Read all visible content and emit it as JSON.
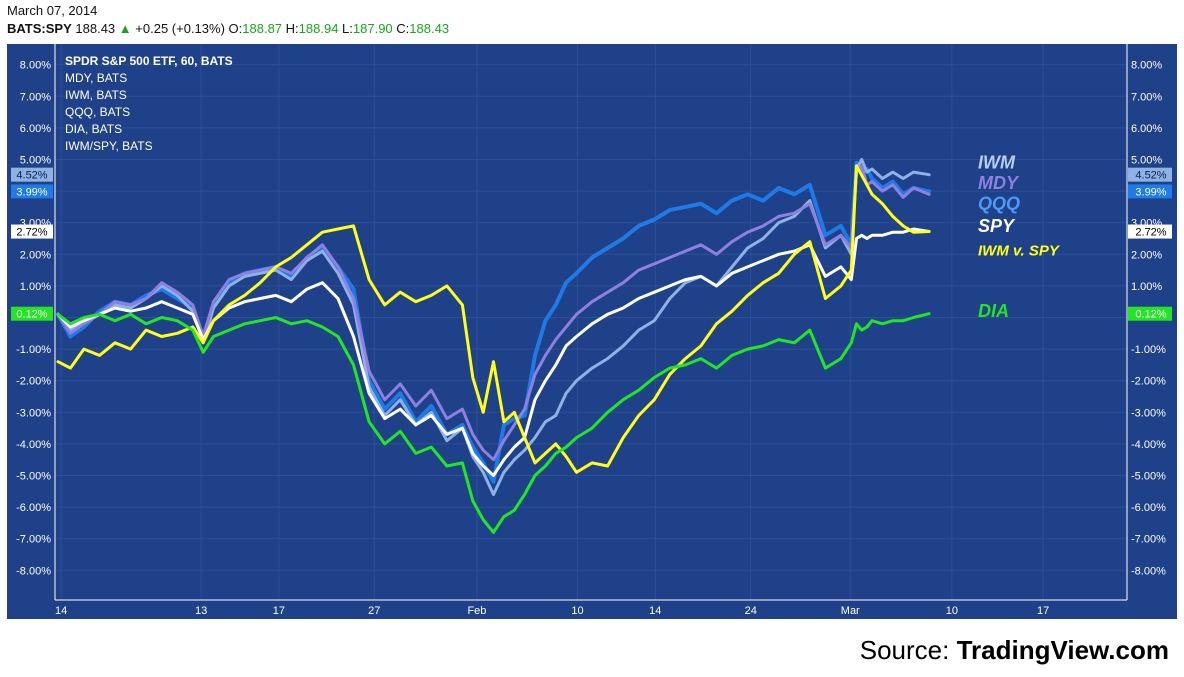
{
  "header": {
    "date": "March 07, 2014",
    "symbol": "BATS:SPY",
    "last": "188.43",
    "change": "+0.25 (+0.13%)",
    "open_label": "O:",
    "open": "188.87",
    "high_label": "H:",
    "high": "188.94",
    "low_label": "L:",
    "low": "187.90",
    "close_label": "C:",
    "close": "188.43",
    "up_color": "#1aa51a"
  },
  "legend": [
    "SPDR S&P 500 ETF, 60, BATS",
    "MDY, BATS",
    "IWM, BATS",
    "QQQ, BATS",
    "DIA, BATS",
    "IWM/SPY, BATS"
  ],
  "source": {
    "prefix": "Source:",
    "name": "TradingView.com"
  },
  "colors": {
    "background": "#1f4189",
    "grid": "#2d5094",
    "axis_text": "#ffffff"
  },
  "chart_data": {
    "type": "line",
    "y_unit": "%",
    "ylim": [
      -8.6,
      8.6
    ],
    "yticks": [
      8,
      7,
      6,
      5,
      4,
      3,
      2,
      1,
      0,
      -1,
      -2,
      -3,
      -4,
      -5,
      -6,
      -7,
      -8
    ],
    "ytick_labels": [
      "8.00%",
      "7.00%",
      "6.00%",
      "5.00%",
      "4.00%",
      "3.00%",
      "2.00%",
      "1.00%",
      "",
      "-1.00%",
      "-2.00%",
      "-3.00%",
      "-4.00%",
      "-5.00%",
      "-6.00%",
      "-7.00%",
      "-8.00%"
    ],
    "xlim": [
      0,
      1000
    ],
    "xticks": [
      {
        "label": "14",
        "x": 3
      },
      {
        "label": "13",
        "x": 138
      },
      {
        "label": "17",
        "x": 213
      },
      {
        "label": "27",
        "x": 305
      },
      {
        "label": "Feb",
        "x": 404
      },
      {
        "label": "10",
        "x": 501
      },
      {
        "label": "14",
        "x": 576
      },
      {
        "label": "24",
        "x": 668
      },
      {
        "label": "Mar",
        "x": 764
      },
      {
        "label": "10",
        "x": 862
      },
      {
        "label": "17",
        "x": 950
      }
    ],
    "price_tags": [
      {
        "text": "4.52%",
        "value": 4.52,
        "color": "#8fb2e6",
        "text_color": "#0b1f4a"
      },
      {
        "text": "3.99%",
        "value": 3.99,
        "color": "#1e7be8",
        "text_color": "#ffffff"
      },
      {
        "text": "2.72%",
        "value": 2.72,
        "color": "#ffffff",
        "text_color": "#000000"
      },
      {
        "text": "0.12%",
        "value": 0.12,
        "color": "#22e622",
        "text_color": "#ffffff"
      }
    ],
    "series_labels": [
      {
        "text": "IWM",
        "value": 4.9,
        "color": "#b8cdf0"
      },
      {
        "text": "MDY",
        "value": 4.25,
        "color": "#8e7fe0"
      },
      {
        "text": "QQQ",
        "value": 3.6,
        "color": "#4d9af5"
      },
      {
        "text": "SPY",
        "value": 2.9,
        "color": "#ffffff"
      },
      {
        "text": "IWM v. SPY",
        "value": 2.15,
        "color": "#ffff1a"
      },
      {
        "text": "DIA",
        "value": 0.2,
        "color": "#22e622"
      }
    ],
    "series": [
      {
        "name": "QQQ",
        "color": "#1f7ae8",
        "width": 4,
        "x": [
          0,
          12,
          25,
          40,
          55,
          70,
          85,
          100,
          115,
          130,
          140,
          150,
          165,
          180,
          195,
          210,
          225,
          240,
          255,
          270,
          285,
          300,
          315,
          330,
          345,
          360,
          375,
          390,
          400,
          410,
          420,
          430,
          440,
          450,
          460,
          470,
          480,
          490,
          500,
          515,
          530,
          545,
          560,
          575,
          590,
          605,
          620,
          635,
          650,
          665,
          680,
          695,
          710,
          725,
          740,
          755,
          765,
          770,
          775,
          780,
          785,
          795,
          805,
          815,
          825,
          840
        ],
        "values": [
          0.1,
          -0.6,
          -0.3,
          0.2,
          0.5,
          0.4,
          0.7,
          0.9,
          0.6,
          0.3,
          -0.6,
          0.4,
          1.1,
          1.4,
          1.5,
          1.6,
          1.3,
          1.9,
          2.2,
          1.6,
          0.9,
          -2.0,
          -2.9,
          -2.4,
          -3.3,
          -2.8,
          -3.7,
          -3.4,
          -4.1,
          -4.6,
          -5.2,
          -3.4,
          -3.2,
          -3.1,
          -1.2,
          -0.1,
          0.4,
          1.1,
          1.4,
          1.9,
          2.2,
          2.5,
          2.9,
          3.1,
          3.4,
          3.5,
          3.6,
          3.3,
          3.7,
          3.9,
          3.7,
          4.1,
          3.9,
          4.2,
          2.6,
          2.9,
          2.3,
          4.9,
          4.6,
          4.7,
          4.4,
          4.1,
          4.3,
          3.9,
          4.1,
          3.99
        ]
      },
      {
        "name": "IWM",
        "color": "#8fb2e6",
        "width": 3,
        "x": [
          0,
          12,
          25,
          40,
          55,
          70,
          85,
          100,
          115,
          130,
          140,
          150,
          165,
          180,
          195,
          210,
          225,
          240,
          255,
          270,
          285,
          300,
          315,
          330,
          345,
          360,
          375,
          390,
          400,
          410,
          420,
          430,
          440,
          450,
          460,
          470,
          480,
          490,
          500,
          515,
          530,
          545,
          560,
          575,
          590,
          605,
          620,
          635,
          650,
          665,
          680,
          695,
          710,
          725,
          740,
          755,
          765,
          770,
          775,
          780,
          785,
          795,
          805,
          815,
          825,
          840
        ],
        "values": [
          0.1,
          -0.4,
          -0.2,
          0.1,
          0.4,
          0.3,
          0.6,
          1.0,
          0.7,
          0.2,
          -0.8,
          0.3,
          1.0,
          1.3,
          1.4,
          1.5,
          1.2,
          1.8,
          2.1,
          1.4,
          0.4,
          -2.2,
          -3.1,
          -2.6,
          -3.4,
          -3.0,
          -3.9,
          -3.5,
          -4.4,
          -4.9,
          -5.6,
          -4.9,
          -4.5,
          -4.2,
          -3.8,
          -3.3,
          -3.1,
          -2.4,
          -2.0,
          -1.6,
          -1.3,
          -0.9,
          -0.4,
          -0.1,
          0.6,
          1.1,
          1.3,
          1.0,
          1.6,
          2.2,
          2.5,
          3.0,
          3.2,
          3.7,
          2.2,
          2.6,
          2.0,
          4.7,
          5.0,
          4.6,
          4.7,
          4.4,
          4.6,
          4.4,
          4.6,
          4.52
        ]
      },
      {
        "name": "MDY",
        "color": "#8e7fe0",
        "width": 3,
        "x": [
          0,
          12,
          25,
          40,
          55,
          70,
          85,
          100,
          115,
          130,
          140,
          150,
          165,
          180,
          195,
          210,
          225,
          240,
          255,
          270,
          285,
          300,
          315,
          330,
          345,
          360,
          375,
          390,
          400,
          410,
          420,
          430,
          440,
          450,
          460,
          470,
          480,
          490,
          500,
          515,
          530,
          545,
          560,
          575,
          590,
          605,
          620,
          635,
          650,
          665,
          680,
          695,
          710,
          725,
          740,
          755,
          765,
          770,
          775,
          780,
          785,
          795,
          805,
          815,
          825,
          840
        ],
        "values": [
          0.1,
          -0.5,
          -0.2,
          0.1,
          0.5,
          0.4,
          0.6,
          1.1,
          0.8,
          0.4,
          -0.6,
          0.5,
          1.2,
          1.4,
          1.5,
          1.6,
          1.4,
          1.9,
          2.3,
          1.6,
          0.6,
          -1.7,
          -2.6,
          -2.1,
          -2.8,
          -2.3,
          -3.2,
          -2.9,
          -3.7,
          -4.2,
          -4.5,
          -3.9,
          -3.4,
          -2.9,
          -1.8,
          -1.2,
          -0.7,
          -0.3,
          0.1,
          0.5,
          0.8,
          1.1,
          1.5,
          1.7,
          1.9,
          2.1,
          2.3,
          2.0,
          2.4,
          2.7,
          2.9,
          3.2,
          3.3,
          3.6,
          2.3,
          2.6,
          2.2,
          4.6,
          4.8,
          4.2,
          4.3,
          4.0,
          4.2,
          3.8,
          4.1,
          3.9
        ]
      },
      {
        "name": "SPY",
        "color": "#ffffff",
        "width": 3,
        "x": [
          0,
          12,
          25,
          40,
          55,
          70,
          85,
          100,
          115,
          130,
          140,
          150,
          165,
          180,
          195,
          210,
          225,
          240,
          255,
          270,
          285,
          300,
          315,
          330,
          345,
          360,
          375,
          390,
          400,
          410,
          420,
          430,
          440,
          450,
          460,
          470,
          480,
          490,
          500,
          515,
          530,
          545,
          560,
          575,
          590,
          605,
          620,
          635,
          650,
          665,
          680,
          695,
          710,
          725,
          740,
          755,
          765,
          770,
          775,
          780,
          785,
          795,
          805,
          815,
          825,
          840
        ],
        "values": [
          0.1,
          -0.3,
          -0.1,
          0.1,
          0.3,
          0.2,
          0.3,
          0.5,
          0.3,
          0.1,
          -0.7,
          -0.1,
          0.3,
          0.5,
          0.6,
          0.7,
          0.5,
          0.9,
          1.1,
          0.6,
          -0.6,
          -2.4,
          -3.2,
          -2.9,
          -3.4,
          -3.1,
          -3.7,
          -3.5,
          -4.3,
          -4.7,
          -5.0,
          -4.5,
          -4.1,
          -3.8,
          -2.6,
          -2.0,
          -1.5,
          -0.9,
          -0.6,
          -0.2,
          0.1,
          0.3,
          0.6,
          0.8,
          1.0,
          1.2,
          1.3,
          1.0,
          1.4,
          1.6,
          1.8,
          2.0,
          2.1,
          2.3,
          1.3,
          1.6,
          1.2,
          2.5,
          2.6,
          2.5,
          2.6,
          2.6,
          2.7,
          2.7,
          2.8,
          2.72
        ]
      },
      {
        "name": "IWM v. SPY",
        "color": "#ffff1a",
        "width": 3,
        "x": [
          0,
          12,
          25,
          40,
          55,
          70,
          85,
          100,
          115,
          130,
          140,
          150,
          165,
          180,
          195,
          210,
          225,
          240,
          255,
          270,
          285,
          300,
          315,
          330,
          345,
          360,
          375,
          390,
          400,
          410,
          420,
          430,
          440,
          450,
          460,
          470,
          480,
          490,
          500,
          515,
          530,
          545,
          560,
          575,
          590,
          605,
          620,
          635,
          650,
          665,
          680,
          695,
          710,
          725,
          740,
          755,
          765,
          770,
          775,
          780,
          785,
          795,
          805,
          815,
          825,
          840
        ],
        "values": [
          -1.4,
          -1.6,
          -1.0,
          -1.2,
          -0.8,
          -1.0,
          -0.4,
          -0.6,
          -0.5,
          -0.3,
          -0.8,
          -0.1,
          0.4,
          0.7,
          1.1,
          1.6,
          1.9,
          2.3,
          2.7,
          2.8,
          2.9,
          1.2,
          0.4,
          0.8,
          0.5,
          0.7,
          1.0,
          0.4,
          -1.9,
          -3.0,
          -1.4,
          -3.3,
          -3.0,
          -3.8,
          -4.6,
          -4.3,
          -4.0,
          -4.4,
          -4.9,
          -4.6,
          -4.7,
          -3.8,
          -3.1,
          -2.6,
          -1.8,
          -1.3,
          -0.9,
          -0.2,
          0.2,
          0.7,
          1.1,
          1.4,
          2.0,
          2.4,
          0.6,
          1.0,
          1.5,
          4.8,
          4.5,
          4.2,
          3.9,
          3.6,
          3.2,
          2.9,
          2.7,
          2.72
        ]
      },
      {
        "name": "DIA",
        "color": "#22e622",
        "width": 3,
        "x": [
          0,
          12,
          25,
          40,
          55,
          70,
          85,
          100,
          115,
          130,
          140,
          150,
          165,
          180,
          195,
          210,
          225,
          240,
          255,
          270,
          285,
          300,
          315,
          330,
          345,
          360,
          375,
          390,
          400,
          410,
          420,
          430,
          440,
          450,
          460,
          470,
          480,
          490,
          500,
          515,
          530,
          545,
          560,
          575,
          590,
          605,
          620,
          635,
          650,
          665,
          680,
          695,
          710,
          725,
          740,
          755,
          765,
          770,
          775,
          780,
          785,
          795,
          805,
          815,
          825,
          840
        ],
        "values": [
          0.1,
          -0.2,
          0.0,
          0.1,
          -0.1,
          0.1,
          -0.2,
          0.0,
          -0.1,
          -0.4,
          -1.1,
          -0.6,
          -0.4,
          -0.2,
          -0.1,
          0.0,
          -0.2,
          -0.1,
          -0.3,
          -0.6,
          -1.5,
          -3.3,
          -4.0,
          -3.6,
          -4.3,
          -4.1,
          -4.7,
          -4.6,
          -5.8,
          -6.4,
          -6.8,
          -6.3,
          -6.1,
          -5.6,
          -5.0,
          -4.7,
          -4.3,
          -4.1,
          -3.8,
          -3.5,
          -3.0,
          -2.6,
          -2.3,
          -1.9,
          -1.6,
          -1.5,
          -1.3,
          -1.6,
          -1.2,
          -1.0,
          -0.9,
          -0.7,
          -0.8,
          -0.4,
          -1.6,
          -1.3,
          -0.8,
          -0.2,
          -0.4,
          -0.3,
          -0.1,
          -0.2,
          -0.1,
          -0.1,
          0.0,
          0.12
        ]
      }
    ]
  }
}
